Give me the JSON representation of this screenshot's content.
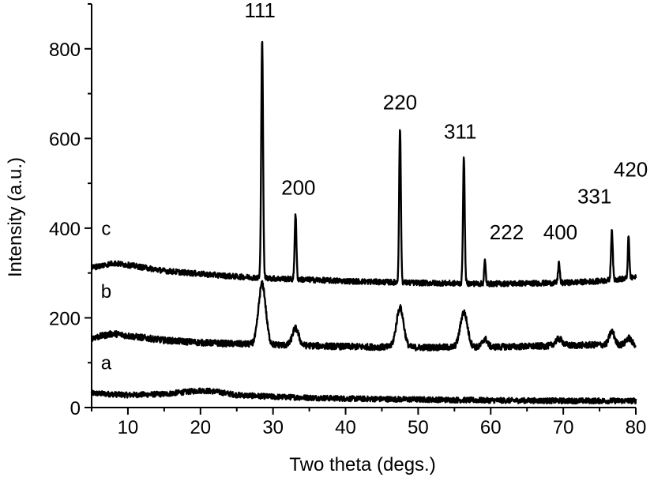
{
  "chart_data": {
    "type": "line",
    "title": "",
    "xlabel": "Two theta (degs.)",
    "ylabel": "Intensity (a.u.)",
    "xlim": [
      5,
      80
    ],
    "ylim": [
      0,
      900
    ],
    "xticks": [
      10,
      20,
      30,
      40,
      50,
      60,
      70,
      80
    ],
    "yticks": [
      0,
      200,
      400,
      600,
      800
    ],
    "grid": false,
    "line_color": "#000000",
    "series": [
      {
        "name": "a",
        "base": [
          [
            5,
            32
          ],
          [
            10,
            28
          ],
          [
            15,
            30
          ],
          [
            20,
            38
          ],
          [
            22,
            36
          ],
          [
            25,
            28
          ],
          [
            30,
            24
          ],
          [
            40,
            20
          ],
          [
            50,
            18
          ],
          [
            60,
            16
          ],
          [
            70,
            15
          ],
          [
            80,
            15
          ]
        ],
        "noise": 6,
        "peaks": []
      },
      {
        "name": "b",
        "base": [
          [
            5,
            155
          ],
          [
            8,
            165
          ],
          [
            10,
            160
          ],
          [
            15,
            150
          ],
          [
            20,
            145
          ],
          [
            25,
            142
          ],
          [
            30,
            140
          ],
          [
            40,
            136
          ],
          [
            50,
            134
          ],
          [
            60,
            135
          ],
          [
            70,
            138
          ],
          [
            75,
            140
          ],
          [
            80,
            140
          ]
        ],
        "noise": 7,
        "peaks": [
          {
            "x": 28.5,
            "h": 135,
            "w": 0.7
          },
          {
            "x": 33.1,
            "h": 38,
            "w": 0.6
          },
          {
            "x": 47.5,
            "h": 88,
            "w": 0.7
          },
          {
            "x": 56.3,
            "h": 78,
            "w": 0.7
          },
          {
            "x": 59.2,
            "h": 18,
            "w": 0.5
          },
          {
            "x": 69.4,
            "h": 15,
            "w": 0.7
          },
          {
            "x": 76.7,
            "h": 30,
            "w": 0.5
          },
          {
            "x": 79.0,
            "h": 15,
            "w": 0.5
          }
        ]
      },
      {
        "name": "c",
        "base": [
          [
            5,
            312
          ],
          [
            8,
            322
          ],
          [
            10,
            318
          ],
          [
            15,
            305
          ],
          [
            20,
            298
          ],
          [
            25,
            292
          ],
          [
            30,
            288
          ],
          [
            40,
            282
          ],
          [
            50,
            278
          ],
          [
            60,
            276
          ],
          [
            70,
            278
          ],
          [
            75,
            282
          ],
          [
            80,
            290
          ]
        ],
        "noise": 6,
        "peaks": [
          {
            "x": 28.5,
            "h": 530,
            "w": 0.18
          },
          {
            "x": 33.1,
            "h": 145,
            "w": 0.17
          },
          {
            "x": 47.5,
            "h": 345,
            "w": 0.17
          },
          {
            "x": 56.3,
            "h": 280,
            "w": 0.17
          },
          {
            "x": 59.2,
            "h": 50,
            "w": 0.15
          },
          {
            "x": 69.4,
            "h": 45,
            "w": 0.17
          },
          {
            "x": 76.7,
            "h": 112,
            "w": 0.17
          },
          {
            "x": 79.0,
            "h": 92,
            "w": 0.15
          }
        ]
      }
    ],
    "series_labels": [
      {
        "text": "a",
        "x": 7.0,
        "y": 85
      },
      {
        "text": "b",
        "x": 7.0,
        "y": 245
      },
      {
        "text": "c",
        "x": 7.0,
        "y": 385
      }
    ],
    "annotations": [
      {
        "text": "111",
        "x": 28.2,
        "y": 870
      },
      {
        "text": "200",
        "x": 33.5,
        "y": 475
      },
      {
        "text": "220",
        "x": 47.5,
        "y": 665
      },
      {
        "text": "311",
        "x": 55.8,
        "y": 600
      },
      {
        "text": "222",
        "x": 62.2,
        "y": 375
      },
      {
        "text": "400",
        "x": 69.6,
        "y": 375
      },
      {
        "text": "331",
        "x": 74.3,
        "y": 455
      },
      {
        "text": "420",
        "x": 79.3,
        "y": 515
      }
    ]
  }
}
